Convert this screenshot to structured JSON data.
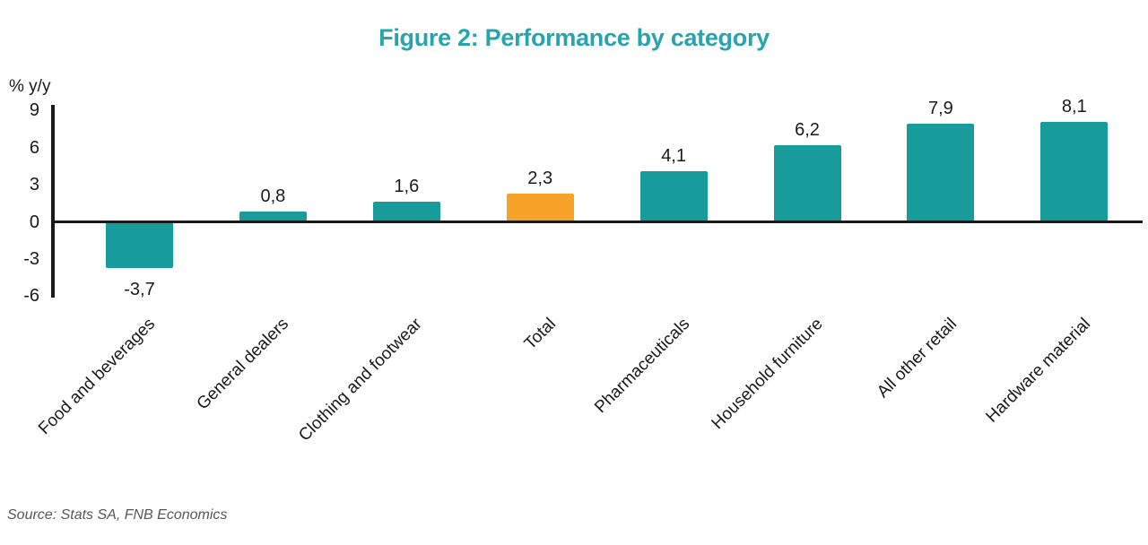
{
  "source": "Source: Stats SA, FNB Economics",
  "colors": {
    "teal_bar": "#179B9B",
    "orange_bar": "#F7A229",
    "title_teal": "#27A4AC",
    "axis_black": "#1a1a1a",
    "source_gray": "#575757"
  },
  "chart_data": {
    "type": "bar",
    "title": "Figure 2: Performance by category",
    "ylabel": "% y/y",
    "xlabel": "",
    "ylim": [
      -6,
      9
    ],
    "yticks": [
      9,
      6,
      3,
      0,
      -3,
      -6
    ],
    "grid": false,
    "legend": "none",
    "decimal_separator": "comma",
    "categories": [
      "Food and beverages",
      "General dealers",
      "Clothing and footwear",
      "Total",
      "Pharmaceuticals",
      "Household furniture",
      "All other retail",
      "Hardware material"
    ],
    "values": [
      -3.7,
      0.8,
      1.6,
      2.3,
      4.1,
      6.2,
      7.9,
      8.1
    ],
    "value_labels": [
      "-3,7",
      "0,8",
      "1,6",
      "2,3",
      "4,1",
      "6,2",
      "7,9",
      "8,1"
    ],
    "bar_color_keys": [
      "teal_bar",
      "teal_bar",
      "teal_bar",
      "orange_bar",
      "teal_bar",
      "teal_bar",
      "teal_bar",
      "teal_bar"
    ],
    "highlighted_category": "Total"
  }
}
